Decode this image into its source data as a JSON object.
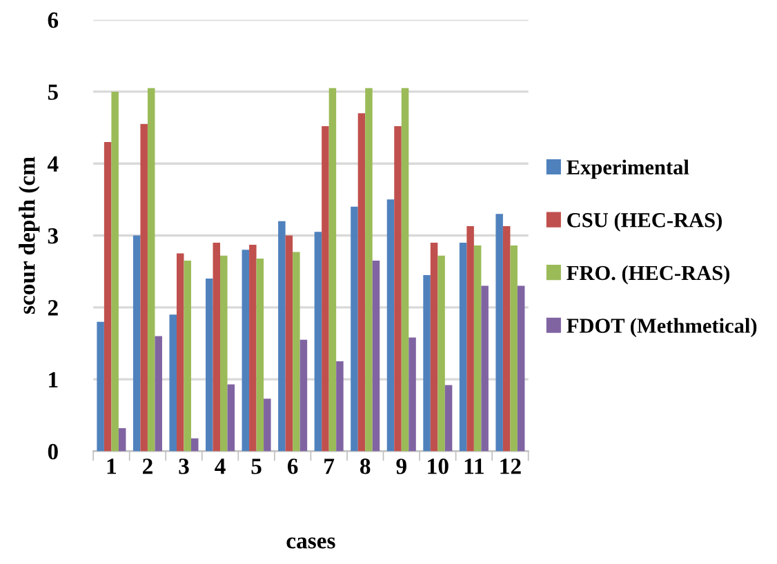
{
  "chart_data": {
    "type": "bar",
    "xlabel": "cases",
    "ylabel": "scour depth (cm",
    "categories": [
      "1",
      "2",
      "3",
      "4",
      "5",
      "6",
      "7",
      "8",
      "9",
      "10",
      "11",
      "12"
    ],
    "series": [
      {
        "name": "Experimental",
        "color": "#4f81bd",
        "values": [
          1.8,
          3.0,
          1.9,
          2.4,
          2.8,
          3.2,
          3.05,
          3.4,
          3.5,
          2.45,
          2.9,
          3.3
        ]
      },
      {
        "name": "CSU (HEC-RAS)",
        "color": "#c0504d",
        "values": [
          4.3,
          4.55,
          2.75,
          2.9,
          2.87,
          3.0,
          4.52,
          4.7,
          4.52,
          2.9,
          3.13,
          3.13
        ]
      },
      {
        "name": "FRO. (HEC-RAS)",
        "color": "#9bbb59",
        "values": [
          5.0,
          5.05,
          2.65,
          2.72,
          2.68,
          2.77,
          5.05,
          5.05,
          5.05,
          2.72,
          2.86,
          2.86
        ]
      },
      {
        "name": "FDOT (Methmetical)",
        "color": "#8064a2",
        "values": [
          0.32,
          1.6,
          0.18,
          0.93,
          0.73,
          1.55,
          1.25,
          2.65,
          1.58,
          0.92,
          2.3,
          2.3
        ]
      }
    ],
    "ylim": [
      0,
      6
    ],
    "yticks": [
      0,
      1,
      2,
      3,
      4,
      5,
      6
    ],
    "grid": "y",
    "legend": "right"
  }
}
